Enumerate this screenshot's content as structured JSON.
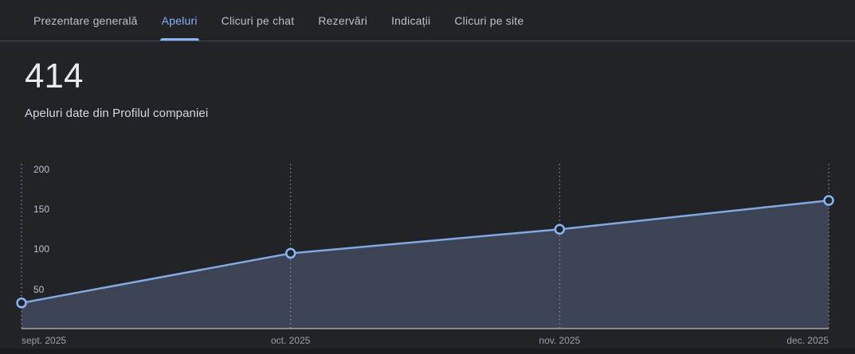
{
  "tabs": {
    "items": [
      {
        "label": "Prezentare generală",
        "active": false
      },
      {
        "label": "Apeluri",
        "active": true
      },
      {
        "label": "Clicuri pe chat",
        "active": false
      },
      {
        "label": "Rezervări",
        "active": false
      },
      {
        "label": "Indicații",
        "active": false
      },
      {
        "label": "Clicuri pe site",
        "active": false
      }
    ]
  },
  "metric": {
    "value": "414",
    "description": "Apeluri date din Profilul companiei"
  },
  "chart_data": {
    "type": "area",
    "title": "Apeluri date din Profilul companiei",
    "categories": [
      "sept. 2025",
      "oct. 2025",
      "nov. 2025",
      "dec. 2025"
    ],
    "values": [
      33,
      95,
      125,
      161
    ],
    "total": 414,
    "xlabel": "",
    "ylabel": "",
    "ylim": [
      0,
      200
    ],
    "yticks": [
      50,
      100,
      150,
      200
    ],
    "grid": "vertical-dotted-lines",
    "legend": "none"
  },
  "colors": {
    "background": "#212327",
    "accent_blue": "#8ab4f8",
    "chart_line": "#84a8e0",
    "chart_area_fill": "#3b4354",
    "axis_baseline": "#878c91",
    "grid_dotted": "#9aa0a6",
    "text_primary": "#e8eaed",
    "text_secondary": "#bdc1c6",
    "text_muted": "#9aa0a6",
    "divider": "#484b4f"
  }
}
